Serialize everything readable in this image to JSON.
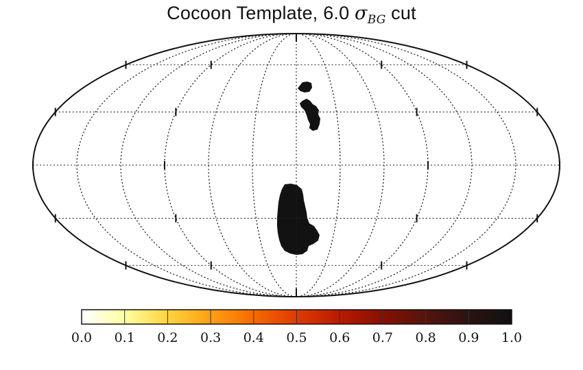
{
  "title": {
    "prefix": "Cocoon Template, 6.0 ",
    "symbol": "σ",
    "subscript": "BG",
    "suffix": " cut"
  },
  "map": {
    "projection": "mollweide",
    "grid": true,
    "mask_color": "#111111",
    "background_color": "#ffffff"
  },
  "colorbar": {
    "colormap": "afmhot_r",
    "ticks": [
      "0.0",
      "0.1",
      "0.2",
      "0.3",
      "0.4",
      "0.5",
      "0.6",
      "0.7",
      "0.8",
      "0.9",
      "1.0"
    ],
    "range": [
      0.0,
      1.0
    ],
    "colors": [
      "#ffffff",
      "#ffff9e",
      "#ffd43d",
      "#ff9f12",
      "#f56a00",
      "#e03a00",
      "#b81a00",
      "#861000",
      "#541410",
      "#2a1313",
      "#111111"
    ]
  }
}
